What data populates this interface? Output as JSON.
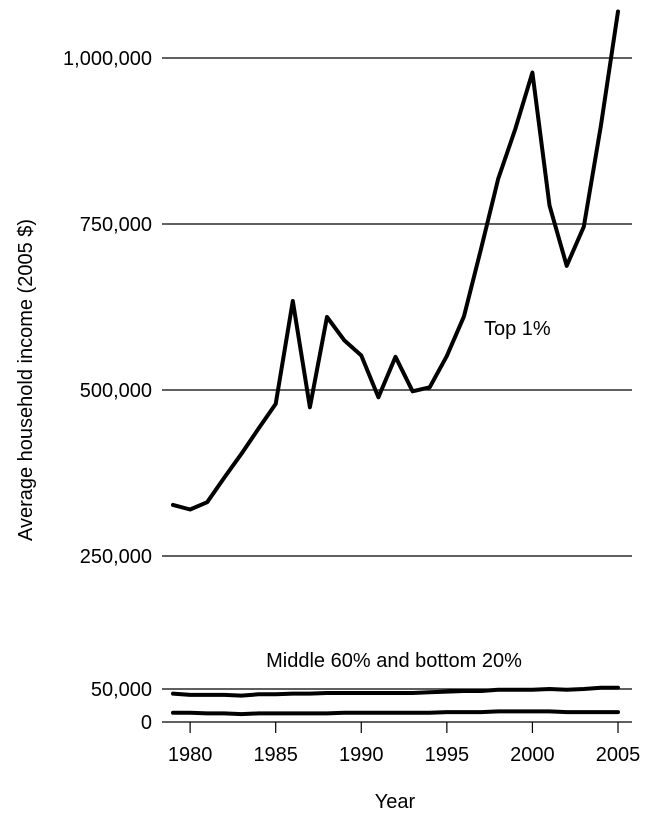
{
  "chart_data": {
    "type": "line",
    "xlabel": "Year",
    "ylabel": "Average household income (2005 $)",
    "xlim": [
      1979,
      2005
    ],
    "x_ticks": [
      1980,
      1985,
      1990,
      1995,
      2000,
      2005
    ],
    "x_tick_labels": [
      "1980",
      "1985",
      "1990",
      "1995",
      "2000",
      "2005"
    ],
    "y_ticks": [
      0,
      50000,
      250000,
      500000,
      750000,
      1000000
    ],
    "y_tick_labels": [
      "0",
      "50,000",
      "250,000",
      "500,000",
      "750,000",
      "1,000,000"
    ],
    "grid": "horizontal",
    "annotations": [
      {
        "text": "Top 1%",
        "near_year": 1997,
        "near_value": 600000
      },
      {
        "text": "Middle 60% and bottom 20%",
        "near_year": 1992,
        "near_value": 84000
      }
    ],
    "x": [
      1979,
      1980,
      1981,
      1982,
      1983,
      1984,
      1985,
      1986,
      1987,
      1988,
      1989,
      1990,
      1991,
      1992,
      1993,
      1994,
      1995,
      1996,
      1997,
      1998,
      1999,
      2000,
      2001,
      2002,
      2003,
      2004,
      2005
    ],
    "series": [
      {
        "values": [
          327000,
          320000,
          331000,
          368000,
          404000,
          442000,
          479000,
          634000,
          474000,
          610000,
          575000,
          552000,
          489000,
          550000,
          498000,
          504000,
          551000,
          611000,
          713000,
          818000,
          893000,
          978000,
          778000,
          687000,
          746000,
          898000,
          1070000
        ]
      },
      {
        "values": [
          43000,
          41000,
          41000,
          41000,
          40000,
          42000,
          42000,
          43000,
          43000,
          44000,
          44000,
          44000,
          44000,
          44000,
          44000,
          45000,
          46000,
          47000,
          47000,
          49000,
          49000,
          49000,
          50000,
          49000,
          50000,
          52000,
          52000
        ]
      },
      {
        "values": [
          14000,
          14000,
          13000,
          13000,
          12000,
          13000,
          13000,
          13000,
          13000,
          13000,
          14000,
          14000,
          14000,
          14000,
          14000,
          14000,
          15000,
          15000,
          15000,
          16000,
          16000,
          16000,
          16000,
          15000,
          15000,
          15000,
          15000
        ]
      }
    ]
  }
}
